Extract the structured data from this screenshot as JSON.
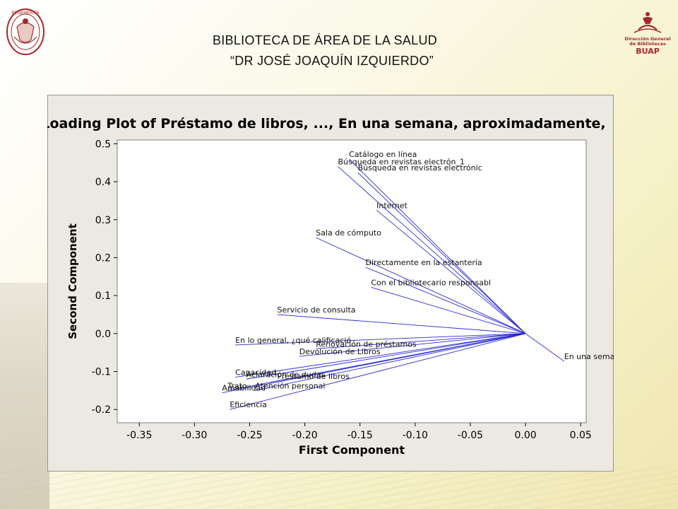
{
  "header": {
    "title_line1": "BIBLIOTECA DE ÁREA DE LA SALUD",
    "title_line2": "“DR JOSÉ JOAQUÍN IZQUIERDO”",
    "logo_left_text": "BENEMÉRITA",
    "logo_right_lines": [
      "Dirección General",
      "de Bibliotecas",
      "BUAP"
    ]
  },
  "colors": {
    "loading_line": "#2a2ad6",
    "plot_bg": "#ffffff",
    "frame_bg": "#ece9e2",
    "brand_red": "#a6282c"
  },
  "chart_data": {
    "type": "scatter",
    "title": "Loading Plot of Préstamo de libros, ..., En una semana, aproximadamente,",
    "xlabel": "First Component",
    "ylabel": "Second Component",
    "xlim": [
      -0.37,
      0.055
    ],
    "ylim": [
      -0.235,
      0.51
    ],
    "xticks": [
      -0.35,
      -0.3,
      -0.25,
      -0.2,
      -0.15,
      -0.1,
      -0.05,
      0.0,
      0.05
    ],
    "yticks": [
      -0.2,
      -0.1,
      0.0,
      0.1,
      0.2,
      0.3,
      0.4,
      0.5
    ],
    "xtick_labels": [
      "-0.35",
      "-0.30",
      "-0.25",
      "-0.20",
      "-0.15",
      "-0.10",
      "-0.05",
      "0.00",
      "0.05"
    ],
    "ytick_labels": [
      "-0.2",
      "-0.1",
      "0.0",
      "0.1",
      "0.2",
      "0.3",
      "0.4",
      "0.5"
    ],
    "origin": [
      0.0,
      0.0
    ],
    "loadings": [
      {
        "label": "Catálogo en línea",
        "x": -0.16,
        "y": 0.46
      },
      {
        "label": "Búsqueda en revistas electrón_1",
        "x": -0.17,
        "y": 0.44
      },
      {
        "label": "Búsqueda en revistas electrónic",
        "x": -0.152,
        "y": 0.424
      },
      {
        "label": "Internet",
        "x": -0.135,
        "y": 0.325
      },
      {
        "label": "Sala de cómputo",
        "x": -0.19,
        "y": 0.253
      },
      {
        "label": "Directamente en la estantería",
        "x": -0.145,
        "y": 0.175
      },
      {
        "label": "Con el bibliotecario responsabl",
        "x": -0.14,
        "y": 0.122
      },
      {
        "label": "Servicio de consulta",
        "x": -0.225,
        "y": 0.05
      },
      {
        "label": "En lo general, ¿qué calificació",
        "x": -0.263,
        "y": -0.03
      },
      {
        "label": "Renovación de préstamos",
        "x": -0.19,
        "y": -0.04
      },
      {
        "label": "Devolución de Libros",
        "x": -0.205,
        "y": -0.06
      },
      {
        "label": "En una semana, aproximadam",
        "x": 0.035,
        "y": -0.073
      },
      {
        "label": "Préstamo de libros",
        "x": -0.225,
        "y": -0.125
      },
      {
        "label": "Capacidad",
        "x": -0.263,
        "y": -0.115
      },
      {
        "label": "Aclaración de dudas",
        "x": -0.253,
        "y": -0.12
      },
      {
        "label": "Atención personal",
        "x": -0.245,
        "y": -0.15
      },
      {
        "label": "Trato",
        "x": -0.27,
        "y": -0.15
      },
      {
        "label": "Amabilidad",
        "x": -0.275,
        "y": -0.156
      },
      {
        "label": "Eficiencia",
        "x": -0.268,
        "y": -0.2
      }
    ]
  }
}
